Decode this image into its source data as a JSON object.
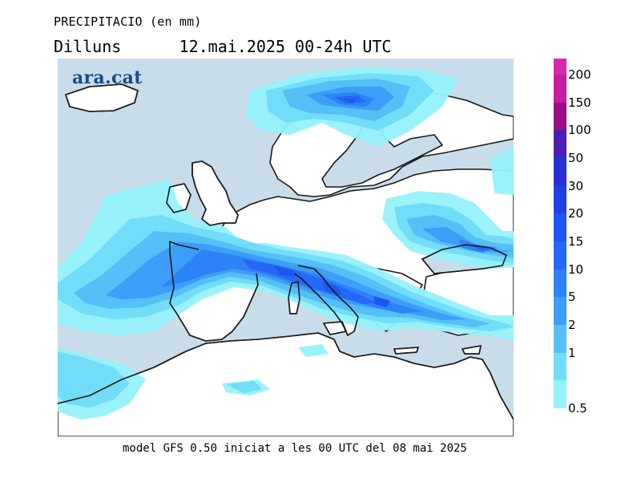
{
  "header": {
    "variable": "PRECIPITACIO (en mm)",
    "day": "Dilluns",
    "date_range": "12.mai.2025 00-24h UTC"
  },
  "logo": {
    "text": "ara.cat"
  },
  "footer": {
    "caption": "model GFS 0.50 iniciat a les 00 UTC del 08 mai 2025"
  },
  "legend": {
    "bins": [
      {
        "label": "200",
        "color": "#c81aa3"
      },
      {
        "label": "150",
        "color": "#9a0f86"
      },
      {
        "label": "100",
        "color": "#4b1fb0"
      },
      {
        "label": "50",
        "color": "#2a2fd6"
      },
      {
        "label": "30",
        "color": "#1e40e6"
      },
      {
        "label": "20",
        "color": "#1f55f0"
      },
      {
        "label": "15",
        "color": "#2468f5"
      },
      {
        "label": "10",
        "color": "#2e82f7"
      },
      {
        "label": "5",
        "color": "#3c9ef7"
      },
      {
        "label": "2",
        "color": "#55bff7"
      },
      {
        "label": "1",
        "color": "#72ddf8"
      },
      {
        "label": "0.5",
        "color": "#95f2fb"
      }
    ],
    "top_color": "#d62aa8"
  },
  "map": {
    "sea_color": "#c8dde9",
    "land_color": "#ffffff",
    "coast_color": "#000000"
  }
}
